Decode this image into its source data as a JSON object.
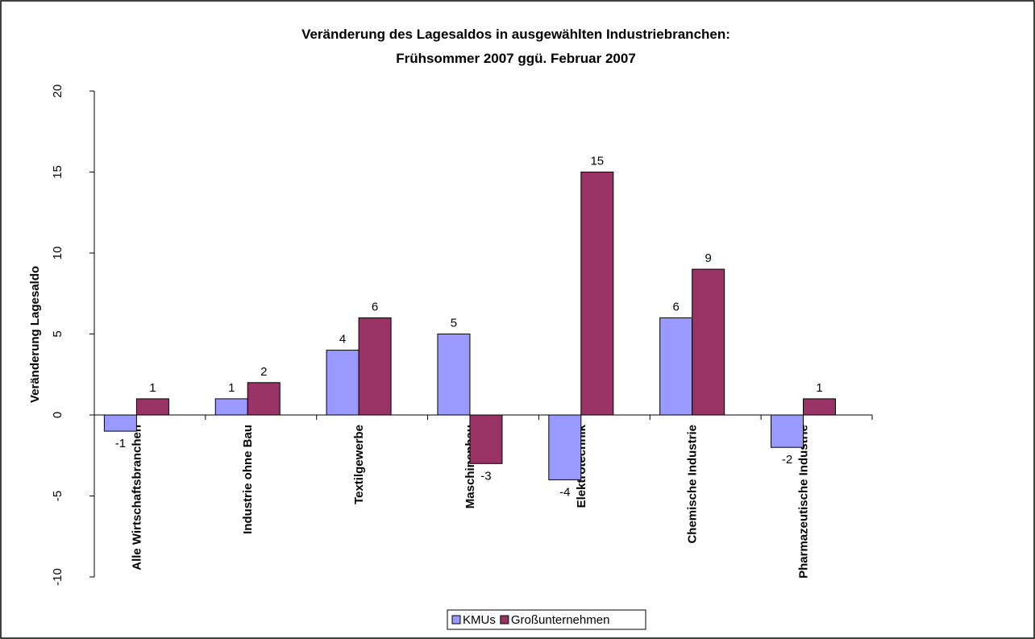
{
  "chart_data": {
    "type": "bar",
    "title": "Veränderung des Lagesaldos in ausgewählten Industriebranchen:",
    "subtitle": "Frühsommer 2007 ggü. Februar 2007",
    "y_label": "Veränderung Lagesaldo",
    "categories": [
      "Alle Wirtschaftsbranchen",
      "Industrie ohne Bau",
      "Textilgewerbe",
      "Maschinenbau",
      "Elektrotechnik",
      "Chemische Industrie",
      "Pharmazeutische Industrie"
    ],
    "series": [
      {
        "name": "KMUs",
        "color": "#9999ff",
        "values": [
          -1,
          1,
          4,
          5,
          -4,
          6,
          -2
        ]
      },
      {
        "name": "Großunternehmen",
        "color": "#993366",
        "values": [
          1,
          2,
          6,
          -3,
          15,
          9,
          1
        ]
      }
    ],
    "ylim": [
      -10,
      20
    ],
    "yticks": [
      -10,
      -5,
      0,
      5,
      10,
      15,
      20
    ],
    "grid": false
  }
}
